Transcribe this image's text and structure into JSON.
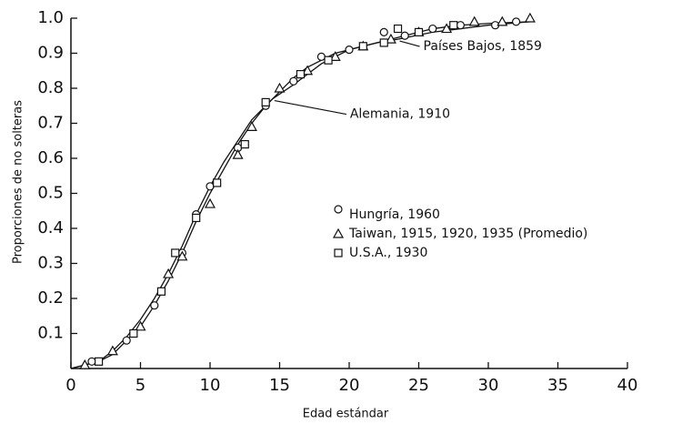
{
  "chart_data": {
    "type": "scatter",
    "xlabel": "Edad estándar",
    "ylabel": "Proporciones de no solteras",
    "xlim": [
      0,
      40
    ],
    "ylim": [
      0,
      1
    ],
    "xticks": [
      0,
      5,
      10,
      15,
      20,
      25,
      30,
      35,
      40
    ],
    "yticks": [
      {
        "value": 0.1,
        "label": "0.1"
      },
      {
        "value": 0.2,
        "label": "0.2"
      },
      {
        "value": 0.3,
        "label": "0.3"
      },
      {
        "value": 0.4,
        "label": "0.4"
      },
      {
        "value": 0.5,
        "label": "0.5"
      },
      {
        "value": 0.6,
        "label": "0.6"
      },
      {
        "value": 0.7,
        "label": "0.7"
      },
      {
        "value": 0.8,
        "label": "0.8"
      },
      {
        "value": 0.9,
        "label": "0.9"
      },
      {
        "value": 1.0,
        "label": "1.0"
      }
    ],
    "color": "#111111",
    "series": [
      {
        "name": "Hungría, 1960",
        "marker": "circle",
        "x": [
          1.5,
          4,
          6,
          8,
          9,
          10,
          12,
          14,
          16,
          18,
          20,
          22.5,
          24,
          26,
          28,
          30.5,
          32
        ],
        "values": [
          0.02,
          0.08,
          0.18,
          0.33,
          0.44,
          0.52,
          0.63,
          0.75,
          0.82,
          0.89,
          0.91,
          0.96,
          0.95,
          0.97,
          0.98,
          0.98,
          0.99
        ]
      },
      {
        "name": "Taiwan, 1915, 1920, 1935 (Promedio)",
        "marker": "triangle",
        "x": [
          1,
          3,
          5,
          7,
          8,
          10,
          12,
          13,
          15,
          17,
          19,
          21,
          23,
          25,
          27,
          29,
          31,
          33
        ],
        "values": [
          0.01,
          0.05,
          0.12,
          0.27,
          0.32,
          0.47,
          0.61,
          0.69,
          0.8,
          0.85,
          0.89,
          0.92,
          0.94,
          0.96,
          0.97,
          0.99,
          0.99,
          1.0
        ]
      },
      {
        "name": "U.S.A., 1930",
        "marker": "square",
        "x": [
          2,
          4.5,
          6.5,
          7.5,
          9,
          10.5,
          12.5,
          14,
          16.5,
          18.5,
          21,
          22.5,
          23.5,
          25,
          27.5
        ],
        "values": [
          0.02,
          0.1,
          0.22,
          0.33,
          0.43,
          0.53,
          0.64,
          0.76,
          0.84,
          0.88,
          0.92,
          0.93,
          0.97,
          0.96,
          0.98
        ]
      }
    ],
    "lines": [
      {
        "name": "Países Bajos, 1859",
        "x": [
          0,
          1,
          2,
          3,
          4,
          5,
          6,
          7,
          8,
          9,
          10,
          11,
          12,
          13,
          14,
          15,
          16,
          17,
          18,
          19,
          20,
          22,
          23.5,
          26,
          28,
          30,
          33
        ],
        "values": [
          0,
          0.01,
          0.02,
          0.04,
          0.08,
          0.12,
          0.18,
          0.25,
          0.33,
          0.42,
          0.5,
          0.57,
          0.64,
          0.7,
          0.75,
          0.79,
          0.83,
          0.86,
          0.88,
          0.9,
          0.91,
          0.93,
          0.94,
          0.96,
          0.97,
          0.98,
          0.99
        ]
      },
      {
        "name": "Alemania, 1910",
        "x": [
          0,
          1,
          2,
          3,
          4,
          5,
          6,
          7,
          8,
          9,
          10,
          11,
          12,
          13,
          14.5,
          16,
          17,
          18,
          19,
          20,
          22,
          24,
          26,
          28,
          30,
          33
        ],
        "values": [
          0,
          0.01,
          0.02,
          0.05,
          0.09,
          0.14,
          0.2,
          0.27,
          0.35,
          0.44,
          0.52,
          0.59,
          0.65,
          0.71,
          0.77,
          0.81,
          0.84,
          0.87,
          0.89,
          0.91,
          0.93,
          0.95,
          0.97,
          0.98,
          0.985,
          0.99
        ]
      }
    ]
  }
}
